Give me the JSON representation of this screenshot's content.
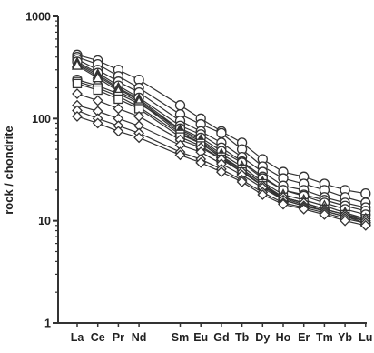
{
  "chart_data": {
    "type": "line",
    "ylabel": "rock / chondrite",
    "xlabel": "",
    "yscale": "log",
    "ylim": [
      1,
      1000
    ],
    "yticks": [
      "1",
      "10",
      "100",
      "1000"
    ],
    "ytick_values": [
      1,
      10,
      100,
      1000
    ],
    "categories": [
      "La",
      "Ce",
      "Pr",
      "Nd",
      "Sm",
      "Eu",
      "Gd",
      "Tb",
      "Dy",
      "Ho",
      "Er",
      "Tm",
      "Yb",
      "Lu"
    ],
    "category_slots": [
      0,
      1,
      2,
      3,
      5,
      6,
      7,
      8,
      9,
      10,
      11,
      12,
      13,
      14
    ],
    "grid": false,
    "colors": {
      "line": "#333333",
      "marker_fill": "#ffffff",
      "marker_stroke": "#333333"
    },
    "series": [
      {
        "marker": "circle",
        "values": [
          420,
          370,
          300,
          240,
          135,
          100,
          75,
          58,
          40,
          30,
          27,
          23,
          20,
          18.5
        ]
      },
      {
        "marker": "circle",
        "values": [
          400,
          340,
          260,
          200,
          110,
          88,
          72,
          50,
          34,
          26,
          23,
          20,
          17,
          15
        ]
      },
      {
        "marker": "circle",
        "values": [
          380,
          300,
          230,
          180,
          95,
          75,
          58,
          42,
          30,
          22,
          20,
          17,
          15,
          13.5
        ]
      },
      {
        "marker": "circle",
        "values": [
          360,
          280,
          210,
          160,
          85,
          70,
          52,
          38,
          27,
          20,
          18,
          16,
          14,
          12.5
        ]
      },
      {
        "marker": "circle",
        "values": [
          240,
          210,
          175,
          140,
          80,
          65,
          48,
          37,
          26,
          20,
          17.5,
          15,
          13,
          11.5
        ]
      },
      {
        "marker": "triangle",
        "values": [
          350,
          270,
          200,
          155,
          78,
          62,
          45,
          34,
          24,
          18,
          16,
          14,
          12,
          10.5
        ]
      },
      {
        "marker": "triangle",
        "values": [
          340,
          260,
          195,
          150,
          75,
          60,
          43,
          32,
          23,
          17,
          15,
          13,
          11.5,
          10
        ]
      },
      {
        "marker": "triangle",
        "values": [
          330,
          250,
          185,
          145,
          72,
          58,
          41,
          31,
          22,
          16.5,
          14.5,
          12.5,
          11,
          9.5
        ]
      },
      {
        "marker": "square",
        "values": [
          230,
          200,
          165,
          130,
          70,
          57,
          42,
          32,
          23,
          17,
          15,
          13,
          11.5,
          10.5
        ]
      },
      {
        "marker": "square",
        "values": [
          220,
          190,
          155,
          125,
          66,
          54,
          40,
          30,
          22,
          16,
          14,
          12.5,
          11,
          10
        ]
      },
      {
        "marker": "diamond",
        "values": [
          175,
          150,
          125,
          105,
          62,
          52,
          40,
          30,
          22,
          17,
          15,
          13,
          11.5,
          10.5
        ]
      },
      {
        "marker": "diamond",
        "values": [
          135,
          118,
          100,
          85,
          55,
          47,
          36,
          28,
          21,
          16,
          14,
          12.5,
          11,
          10
        ]
      },
      {
        "marker": "diamond",
        "values": [
          120,
          100,
          85,
          72,
          47,
          40,
          32,
          25,
          19,
          15,
          13.5,
          12,
          10.5,
          9.5
        ]
      },
      {
        "marker": "diamond",
        "values": [
          105,
          90,
          75,
          65,
          44,
          37,
          30,
          24,
          18,
          14.5,
          13,
          11.5,
          10,
          9
        ]
      }
    ]
  }
}
